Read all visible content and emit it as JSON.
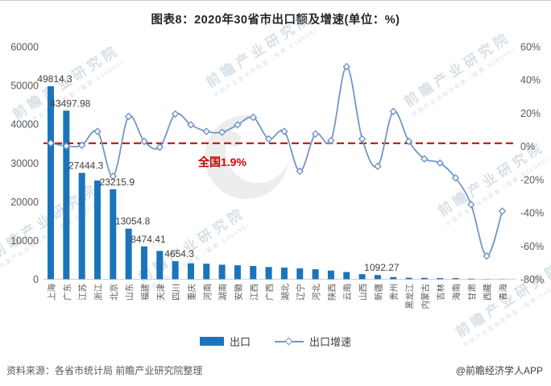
{
  "title": "图表8：2020年30省市出口额及增速(单位：%)",
  "annotation": {
    "prefix": "全国",
    "value": "1.9%"
  },
  "legend": [
    {
      "label": "出口",
      "type": "bar"
    },
    {
      "label": "出口增速",
      "type": "line"
    }
  ],
  "footer": {
    "source": "资料来源：各省市统计局 前瞻产业研究院整理",
    "credit": "@前瞻经济学人APP"
  },
  "watermark": {
    "text": "前瞻产业研究院",
    "subtext": "中国产业咨询领导者（股票·839599）"
  },
  "colors": {
    "bar": "#1b74bb",
    "line": "#7395c7",
    "national_line": "#c00000",
    "axis_text": "#595959",
    "label_text": "#3f3f3f",
    "axis_line": "#d0d0d0"
  },
  "chart_data": {
    "type": "bar+line combo",
    "title": "图表8：2020年30省市出口额及增速(单位：%)",
    "categories": [
      "上海",
      "广东",
      "江苏",
      "浙江",
      "北京",
      "山东",
      "福建",
      "天津",
      "四川",
      "重庆",
      "河南",
      "湖南",
      "安徽",
      "江西",
      "广西",
      "湖北",
      "辽宁",
      "河北",
      "陕西",
      "云南",
      "山西",
      "新疆",
      "贵州",
      "黑龙江",
      "内蒙古",
      "吉林",
      "海南",
      "甘肃",
      "西藏",
      "青海"
    ],
    "series": [
      {
        "name": "出口",
        "type": "bar",
        "axis": "left",
        "values": [
          49814.3,
          43497.98,
          27444.3,
          25470,
          23215.9,
          13054.8,
          8474.41,
          7300,
          4654.3,
          4100,
          4000,
          3750,
          3600,
          3420,
          3150,
          3000,
          2800,
          2570,
          2230,
          1860,
          1320,
          1092.27,
          560,
          390,
          360,
          300,
          280,
          150,
          60,
          40
        ]
      },
      {
        "name": "出口增速",
        "type": "line",
        "axis": "right",
        "values": [
          2,
          0.2,
          0.7,
          9,
          -18,
          18,
          3,
          -0.5,
          19.5,
          13,
          9,
          8.5,
          13,
          17.5,
          4.5,
          9,
          -15,
          7.5,
          3.5,
          48,
          4.5,
          -12,
          21,
          3,
          -7.5,
          -10,
          -19,
          -35,
          -66,
          -39
        ]
      }
    ],
    "value_labels": [
      {
        "index": 0,
        "text": "49814.3"
      },
      {
        "index": 1,
        "text": "43497.98"
      },
      {
        "index": 2,
        "text": "27444.3"
      },
      {
        "index": 4,
        "text": "23215.9"
      },
      {
        "index": 5,
        "text": "13054.8"
      },
      {
        "index": 6,
        "text": "8474.41"
      },
      {
        "index": 8,
        "text": "4654.3"
      },
      {
        "index": 21,
        "text": "1092.27"
      }
    ],
    "left_axis": {
      "min": 0,
      "max": 60000,
      "step": 10000,
      "ticks": [
        "0",
        "10000",
        "20000",
        "30000",
        "40000",
        "50000",
        "60000"
      ]
    },
    "right_axis": {
      "min": -80,
      "max": 60,
      "step": 20,
      "ticks": [
        "60%",
        "40%",
        "20%",
        "0%",
        "-20%",
        "-40%",
        "-60%",
        "-80%"
      ]
    },
    "national_growth_pct": 1.9,
    "legend_position": "bottom",
    "grid": false
  }
}
